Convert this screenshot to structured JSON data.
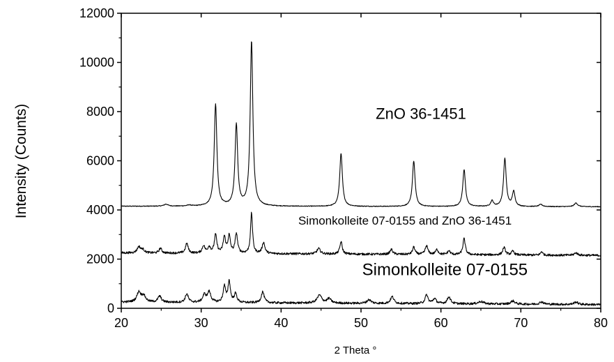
{
  "chart_data": {
    "type": "line",
    "title": "",
    "xlabel": "2 Theta °",
    "ylabel": "Intensity (Counts)",
    "xlim": [
      20,
      80
    ],
    "ylim": [
      0,
      12000
    ],
    "x_ticks": [
      "20",
      "30",
      "40",
      "50",
      "60",
      "70",
      "80"
    ],
    "y_ticks": [
      "0",
      "2000",
      "4000",
      "6000",
      "8000",
      "10000",
      "12000"
    ],
    "grid": false,
    "line_color": "#000000",
    "annotations": [
      {
        "text": "ZnO 36-1451",
        "x": 57.5,
        "y": 7700,
        "size": "medium"
      },
      {
        "text": "Simonkolleite 07-0155 and ZnO 36-1451",
        "x": 55.5,
        "y": 3400,
        "size": "small"
      },
      {
        "text": "Simonkolleite  07-0155",
        "x": 60.5,
        "y": 1350,
        "size": "large"
      }
    ],
    "series": [
      {
        "baseline": 4150,
        "baseline_end": 4130,
        "noise": 15,
        "peaks": [
          [
            25.6,
            80,
            0.3
          ],
          [
            28.5,
            40,
            0.3
          ],
          [
            31.8,
            4150,
            0.2
          ],
          [
            34.4,
            3300,
            0.2
          ],
          [
            36.3,
            6700,
            0.2
          ],
          [
            47.5,
            2150,
            0.2
          ],
          [
            56.6,
            1850,
            0.2
          ],
          [
            62.9,
            1500,
            0.2
          ],
          [
            66.4,
            230,
            0.2
          ],
          [
            68.0,
            1950,
            0.2
          ],
          [
            69.1,
            600,
            0.2
          ],
          [
            72.5,
            90,
            0.25
          ],
          [
            76.9,
            150,
            0.25
          ]
        ]
      },
      {
        "baseline": 2250,
        "baseline_end": 2150,
        "noise": 45,
        "peaks": [
          [
            22.2,
            250,
            0.25
          ],
          [
            22.7,
            130,
            0.25
          ],
          [
            24.9,
            200,
            0.2
          ],
          [
            28.2,
            400,
            0.2
          ],
          [
            30.3,
            300,
            0.2
          ],
          [
            31.0,
            250,
            0.2
          ],
          [
            31.8,
            750,
            0.18
          ],
          [
            32.9,
            650,
            0.18
          ],
          [
            33.5,
            700,
            0.18
          ],
          [
            34.4,
            800,
            0.18
          ],
          [
            36.3,
            1650,
            0.15
          ],
          [
            37.8,
            450,
            0.2
          ],
          [
            44.7,
            220,
            0.25
          ],
          [
            47.5,
            500,
            0.18
          ],
          [
            53.8,
            200,
            0.2
          ],
          [
            56.6,
            300,
            0.18
          ],
          [
            58.2,
            350,
            0.2
          ],
          [
            59.5,
            200,
            0.2
          ],
          [
            61.0,
            150,
            0.2
          ],
          [
            62.9,
            650,
            0.18
          ],
          [
            67.9,
            300,
            0.2
          ],
          [
            69.0,
            150,
            0.2
          ],
          [
            72.6,
            150,
            0.15
          ],
          [
            76.9,
            100,
            0.25
          ]
        ]
      },
      {
        "baseline": 250,
        "baseline_end": 150,
        "noise": 45,
        "peaks": [
          [
            22.2,
            400,
            0.3
          ],
          [
            22.8,
            250,
            0.3
          ],
          [
            24.8,
            250,
            0.25
          ],
          [
            28.2,
            350,
            0.22
          ],
          [
            30.4,
            300,
            0.25
          ],
          [
            31.0,
            420,
            0.25
          ],
          [
            32.9,
            650,
            0.18
          ],
          [
            33.5,
            850,
            0.18
          ],
          [
            34.3,
            350,
            0.2
          ],
          [
            37.7,
            450,
            0.22
          ],
          [
            44.8,
            320,
            0.35
          ],
          [
            46.0,
            180,
            0.3
          ],
          [
            51.0,
            150,
            0.3
          ],
          [
            53.9,
            280,
            0.25
          ],
          [
            58.2,
            350,
            0.22
          ],
          [
            59.2,
            200,
            0.25
          ],
          [
            61.0,
            280,
            0.25
          ],
          [
            65.0,
            100,
            0.4
          ],
          [
            69.0,
            130,
            0.3
          ],
          [
            72.6,
            100,
            0.3
          ],
          [
            76.9,
            100,
            0.3
          ]
        ]
      }
    ]
  }
}
